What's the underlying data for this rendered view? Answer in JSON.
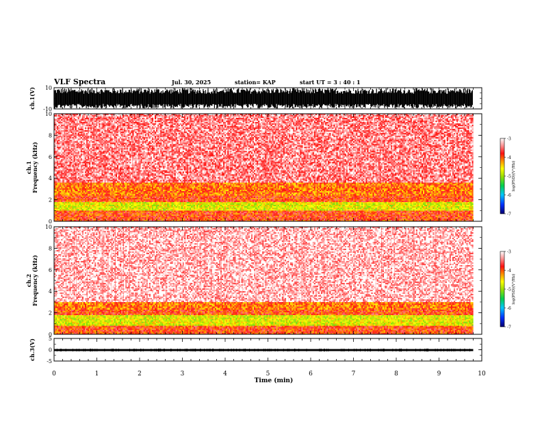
{
  "header": {
    "title": "VLF Spectra",
    "date": "Jul. 30, 2025",
    "station": "station= KAP",
    "start": "start UT =  3 : 40 : 1"
  },
  "chart_data": [
    {
      "type": "line",
      "id": "ch1-waveform",
      "ylabel": "ch.1(V)",
      "ylim": [
        -10,
        10
      ],
      "yticks": [
        "10",
        "-10"
      ],
      "xlim": [
        0,
        10
      ],
      "data_extent_min": 9.8,
      "description_values": {
        "envelope_min": -9.5,
        "envelope_max": 9.5
      }
    },
    {
      "type": "heatmap",
      "id": "ch1-spectrogram",
      "ylabel": "ch.1\nFrequency (kHz)",
      "ylim": [
        0,
        10
      ],
      "yticks": [
        "0",
        "2",
        "4",
        "6",
        "8",
        "10"
      ],
      "xlim": [
        0,
        10
      ],
      "data_extent_min": 9.8,
      "bands": [
        {
          "freq_khz": [
            0.0,
            1.0
          ],
          "level": -3.9
        },
        {
          "freq_khz": [
            1.0,
            1.8
          ],
          "level": -4.7
        },
        {
          "freq_khz": [
            1.8,
            2.4
          ],
          "level": -3.9
        },
        {
          "freq_khz": [
            2.4,
            3.6
          ],
          "level": -4.1
        },
        {
          "freq_khz": [
            3.6,
            10.0
          ],
          "level": -3.4
        }
      ],
      "colorbar": {
        "label": "log(PSD)(V²/Hz)",
        "range": [
          -7,
          -3
        ],
        "ticks": [
          "-3",
          "-4",
          "-5",
          "-6",
          "-7"
        ]
      }
    },
    {
      "type": "heatmap",
      "id": "ch2-spectrogram",
      "ylabel": "ch.2\nFrequency (kHz)",
      "ylim": [
        0,
        10
      ],
      "yticks": [
        "0",
        "2",
        "4",
        "6",
        "8",
        "10"
      ],
      "xlim": [
        0,
        10
      ],
      "data_extent_min": 9.8,
      "bands": [
        {
          "freq_khz": [
            0.0,
            0.8
          ],
          "level": -3.9
        },
        {
          "freq_khz": [
            0.8,
            1.8
          ],
          "level": -4.7
        },
        {
          "freq_khz": [
            1.8,
            2.3
          ],
          "level": -3.9
        },
        {
          "freq_khz": [
            2.3,
            3.0
          ],
          "level": -4.1
        },
        {
          "freq_khz": [
            3.0,
            10.0
          ],
          "level": -3.2
        }
      ],
      "colorbar": {
        "label": "log(PSD)(V²/Hz)",
        "range": [
          -7,
          -3
        ],
        "ticks": [
          "-3",
          "-4",
          "-5",
          "-6",
          "-7"
        ]
      }
    },
    {
      "type": "line",
      "id": "ch3-waveform",
      "ylabel": "ch.3(V)",
      "ylim": [
        -5,
        5
      ],
      "yticks": [
        "5",
        "0",
        "-5"
      ],
      "xlim": [
        0,
        10
      ],
      "data_extent_min": 9.8,
      "description_values": {
        "mean": -0.2,
        "band": [
          -0.6,
          0.3
        ]
      }
    }
  ],
  "x_axis": {
    "label": "Time (min)",
    "ticks": [
      "0",
      "1",
      "2",
      "3",
      "4",
      "5",
      "6",
      "7",
      "8",
      "9",
      "10"
    ]
  },
  "colors": {
    "waveform": "#000000",
    "colormap": [
      "#0a0a8c",
      "#0040ff",
      "#00c0ff",
      "#00d060",
      "#7fe000",
      "#ffff00",
      "#ffa000",
      "#ff2020",
      "#ff8080",
      "#ffffff"
    ]
  }
}
